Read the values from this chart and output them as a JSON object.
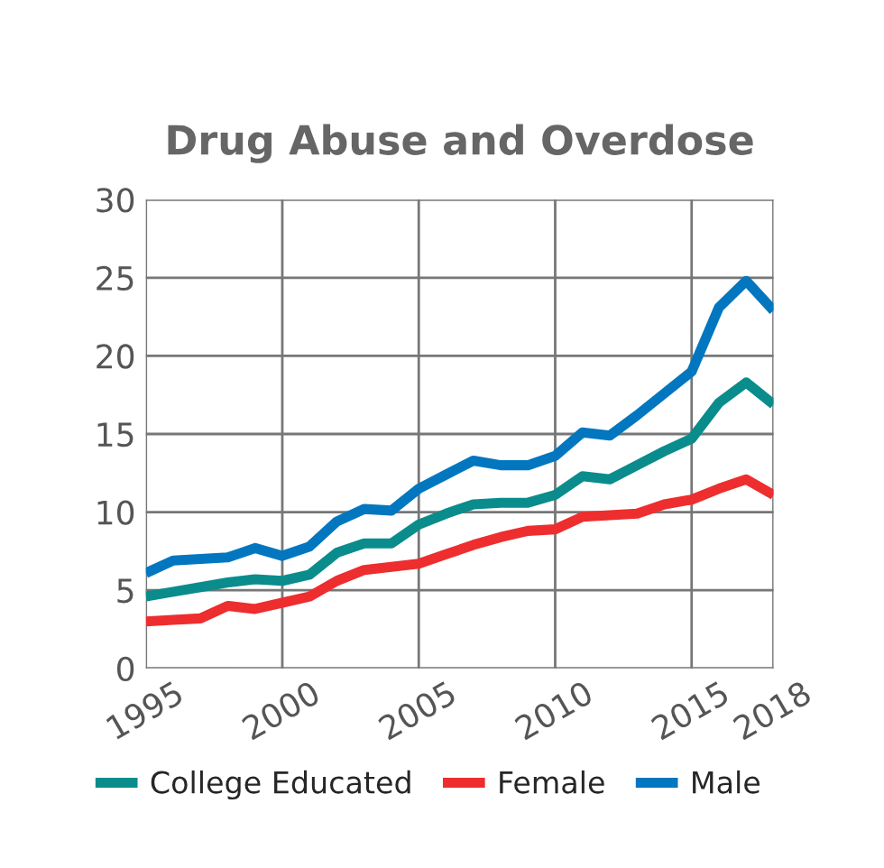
{
  "chart_data": {
    "type": "line",
    "title": "Drug Abuse and Overdose",
    "x": [
      1995,
      1996,
      1997,
      1998,
      1999,
      2000,
      2001,
      2002,
      2003,
      2004,
      2005,
      2006,
      2007,
      2008,
      2009,
      2010,
      2011,
      2012,
      2013,
      2014,
      2015,
      2016,
      2017,
      2018
    ],
    "series": [
      {
        "name": "College Educated",
        "color": "#0a8c8c",
        "values": [
          4.6,
          4.9,
          5.2,
          5.5,
          5.7,
          5.6,
          6.0,
          7.4,
          8.0,
          8.0,
          9.2,
          9.9,
          10.5,
          10.6,
          10.6,
          11.1,
          12.3,
          12.1,
          13.0,
          13.9,
          14.7,
          17.0,
          18.3,
          16.9
        ]
      },
      {
        "name": "Female",
        "color": "#ee2d2f",
        "values": [
          3.0,
          3.1,
          3.2,
          4.0,
          3.8,
          4.2,
          4.6,
          5.6,
          6.3,
          6.5,
          6.7,
          7.3,
          7.9,
          8.4,
          8.8,
          8.9,
          9.7,
          9.8,
          9.9,
          10.5,
          10.8,
          11.5,
          12.1,
          11.1
        ]
      },
      {
        "name": "Male",
        "color": "#0277c0",
        "values": [
          6.1,
          6.9,
          7.0,
          7.1,
          7.7,
          7.2,
          7.8,
          9.4,
          10.2,
          10.1,
          11.5,
          12.4,
          13.3,
          13.0,
          13.0,
          13.6,
          15.1,
          14.9,
          16.2,
          17.6,
          19.0,
          23.1,
          24.8,
          22.9
        ]
      }
    ],
    "xlim": [
      1995,
      2018
    ],
    "xticks": [
      1995,
      2000,
      2005,
      2010,
      2015,
      2018
    ],
    "ylim": [
      0,
      30
    ],
    "yticks": [
      0,
      5,
      10,
      15,
      20,
      25,
      30
    ],
    "grid": true,
    "legend": "bottom",
    "marker": "none",
    "line_style": "solid"
  }
}
